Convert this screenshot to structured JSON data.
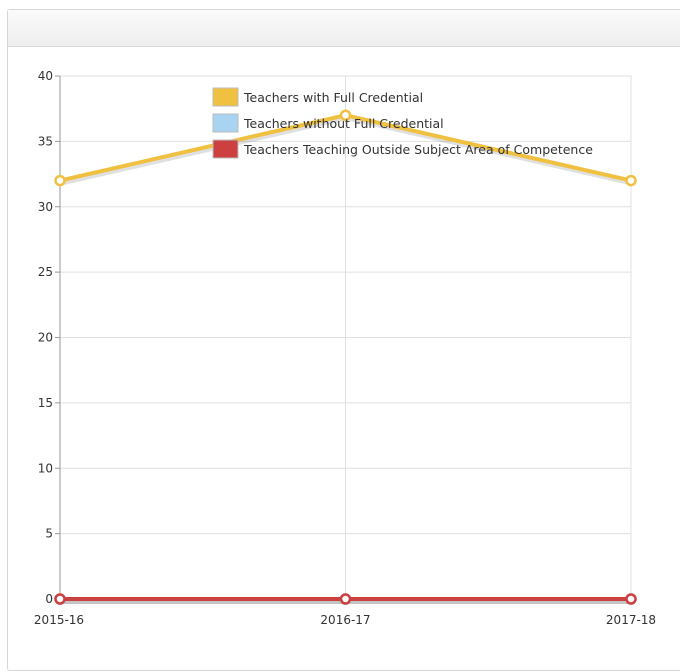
{
  "chart_data": {
    "type": "line",
    "title": "",
    "xlabel": "",
    "ylabel": "",
    "categories": [
      "2015-16",
      "2016-17",
      "2017-18"
    ],
    "ylim": [
      0,
      40
    ],
    "yticks": [
      0,
      5,
      10,
      15,
      20,
      25,
      30,
      35,
      40
    ],
    "grid": true,
    "legend_position": "top-center",
    "series": [
      {
        "name": "Teachers with Full Credential",
        "color": "#f0c040",
        "values": [
          32,
          37,
          32
        ]
      },
      {
        "name": "Teachers without Full Credential",
        "color": "#a8d4f2",
        "values": [
          0,
          0,
          0
        ]
      },
      {
        "name": "Teachers Teaching Outside Subject Area of Competence",
        "color": "#cc4040",
        "values": [
          0,
          0,
          0
        ]
      }
    ]
  }
}
